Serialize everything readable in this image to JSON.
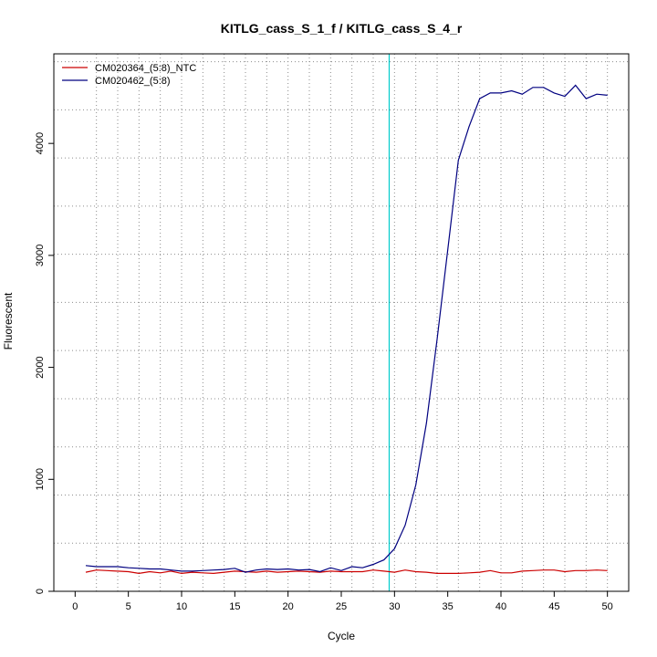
{
  "chart_data": {
    "type": "line",
    "title": "KITLG_cass_S_1_f / KITLG_cass_S_4_r",
    "xlabel": "Cycle",
    "ylabel": "Fluorescent",
    "xlim": [
      -2,
      52
    ],
    "ylim": [
      0,
      4800
    ],
    "xticks": [
      0,
      5,
      10,
      15,
      20,
      25,
      30,
      35,
      40,
      45,
      50
    ],
    "yticks": [
      0,
      1000,
      2000,
      3000,
      4000
    ],
    "grid": true,
    "grid_x": [
      2,
      4,
      6,
      8,
      10,
      12,
      14,
      16,
      18,
      20,
      22,
      24,
      26,
      28,
      30,
      32,
      34,
      36,
      38,
      40,
      42,
      44,
      46,
      48,
      50
    ],
    "grid_y": [
      0,
      430,
      860,
      1290,
      1720,
      2150,
      2580,
      3010,
      3440,
      3870,
      4300,
      4730
    ],
    "threshold_x": 29.5,
    "threshold_color": "#00cccc",
    "baseline_color": "#cc0000",
    "legend_position": "top-left",
    "x": [
      1,
      2,
      3,
      4,
      5,
      6,
      7,
      8,
      9,
      10,
      11,
      12,
      13,
      14,
      15,
      16,
      17,
      18,
      19,
      20,
      21,
      22,
      23,
      24,
      25,
      26,
      27,
      28,
      29,
      30,
      31,
      32,
      33,
      34,
      35,
      36,
      37,
      38,
      39,
      40,
      41,
      42,
      43,
      44,
      45,
      46,
      47,
      48,
      49,
      50
    ],
    "series": [
      {
        "name": "CM020364_(5:8)_NTC",
        "color": "#cc0000",
        "values": [
          170,
          190,
          185,
          180,
          175,
          160,
          175,
          165,
          180,
          160,
          170,
          165,
          160,
          170,
          180,
          175,
          170,
          180,
          170,
          175,
          180,
          175,
          170,
          180,
          175,
          175,
          175,
          190,
          180,
          170,
          190,
          175,
          170,
          160,
          160,
          160,
          165,
          170,
          185,
          165,
          165,
          180,
          185,
          190,
          190,
          175,
          185,
          185,
          190,
          185
        ]
      },
      {
        "name": "CM020462_(5:8)",
        "color": "#000080",
        "values": [
          230,
          220,
          220,
          220,
          210,
          205,
          200,
          200,
          190,
          180,
          180,
          185,
          190,
          195,
          205,
          170,
          190,
          200,
          195,
          200,
          190,
          195,
          175,
          210,
          185,
          220,
          210,
          240,
          280,
          380,
          590,
          950,
          1500,
          2250,
          3050,
          3850,
          4150,
          4400,
          4450,
          4450,
          4470,
          4440,
          4500,
          4500,
          4450,
          4420,
          4520,
          4400,
          4440,
          4430
        ]
      }
    ]
  }
}
